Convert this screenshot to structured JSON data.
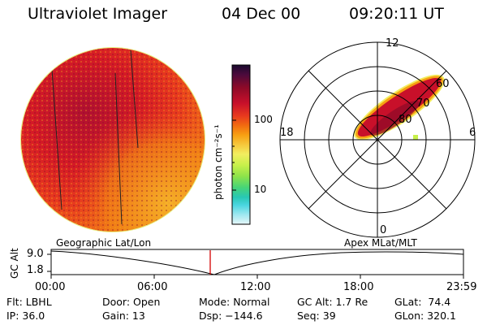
{
  "header": {
    "instrument": "Ultraviolet Imager",
    "date": "04 Dec 00",
    "time": "09:20:11 UT"
  },
  "colorbar": {
    "unit_label": "photon cm⁻²s⁻¹",
    "ticks": [
      "100",
      "10"
    ],
    "colors": [
      "#1a0a2e",
      "#4b0a3c",
      "#8c0a28",
      "#c8102a",
      "#e83a1e",
      "#f26b10",
      "#f7a012",
      "#f6c83c",
      "#f2ee60",
      "#c7f04a",
      "#8de34a",
      "#46d478",
      "#28c8b4",
      "#4ad6e0",
      "#9fe8f0",
      "#e6f6f8"
    ]
  },
  "polar": {
    "clock_labels": {
      "top": "12",
      "left": "18",
      "right": "6",
      "bottom": "0"
    },
    "lat_labels": [
      "60",
      "70",
      "80"
    ]
  },
  "timeline": {
    "left_title": "Geographic Lat/Lon",
    "right_title": "Apex  MLat/MLT",
    "axis_label": "GC Alt",
    "y_top": "9.0",
    "y_bottom": "1.8",
    "x_ticks": [
      "00:00",
      "06:00",
      "12:00",
      "18:00",
      "23:59"
    ],
    "marker_time": "09:20"
  },
  "footer": {
    "col1": [
      "Flt: LBHL",
      "IP: 36.0"
    ],
    "col2": [
      "Door: Open",
      "Gain: 13"
    ],
    "col3": [
      "Mode: Normal",
      "Dsp: −144.6"
    ],
    "col4": [
      "GC Alt: 1.7 Re",
      "Seq: 39"
    ],
    "col5": [
      "GLat:  74.4",
      "GLon: 320.1"
    ]
  }
}
